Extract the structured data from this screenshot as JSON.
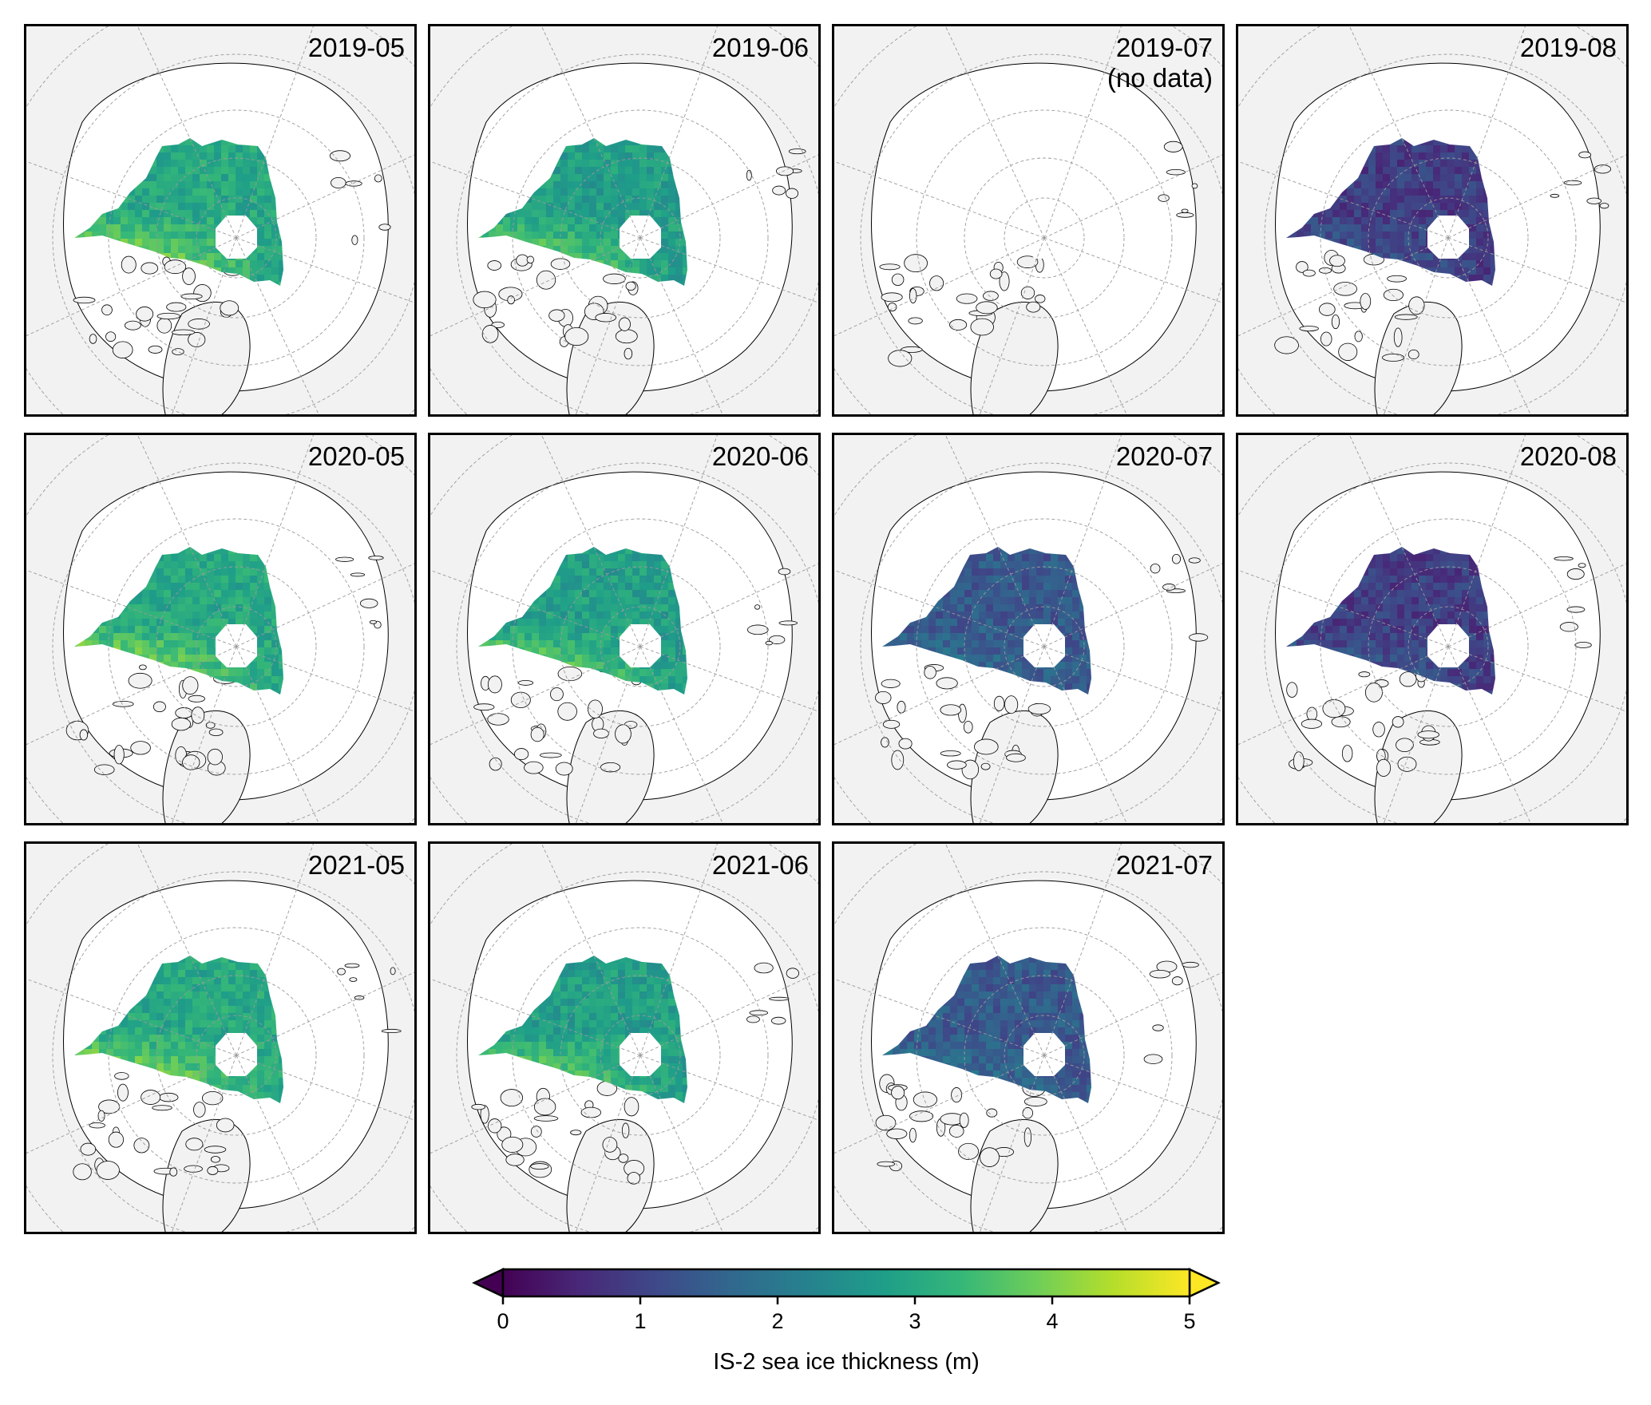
{
  "figure": {
    "panels": [
      {
        "label": "2019-05",
        "has_data": true,
        "month": 5
      },
      {
        "label": "2019-06",
        "has_data": true,
        "month": 6
      },
      {
        "label": "2019-07\n(no data)",
        "has_data": false,
        "month": 7
      },
      {
        "label": "2019-08",
        "has_data": true,
        "month": 8
      },
      {
        "label": "2020-05",
        "has_data": true,
        "month": 5
      },
      {
        "label": "2020-06",
        "has_data": true,
        "month": 6
      },
      {
        "label": "2020-07",
        "has_data": true,
        "month": 7
      },
      {
        "label": "2020-08",
        "has_data": true,
        "month": 8
      },
      {
        "label": "2021-05",
        "has_data": true,
        "month": 5
      },
      {
        "label": "2021-06",
        "has_data": true,
        "month": 6
      },
      {
        "label": "2021-07",
        "has_data": true,
        "month": 7
      }
    ]
  },
  "colorbar": {
    "title": "IS-2 sea ice thickness (m)",
    "ticks": [
      "0",
      "1",
      "2",
      "3",
      "4",
      "5"
    ],
    "min": 0,
    "max": 5,
    "colormap": "viridis",
    "extend": "both"
  },
  "colors": {
    "land": "#f2f2f2",
    "ocean": "#ffffff",
    "coastline": "#000000",
    "gridline": "#9a9a9a",
    "viridis": [
      "#440154",
      "#482878",
      "#3e4989",
      "#31688e",
      "#26828e",
      "#1f9e89",
      "#35b779",
      "#6ece58",
      "#b5de2b",
      "#fde725"
    ]
  }
}
